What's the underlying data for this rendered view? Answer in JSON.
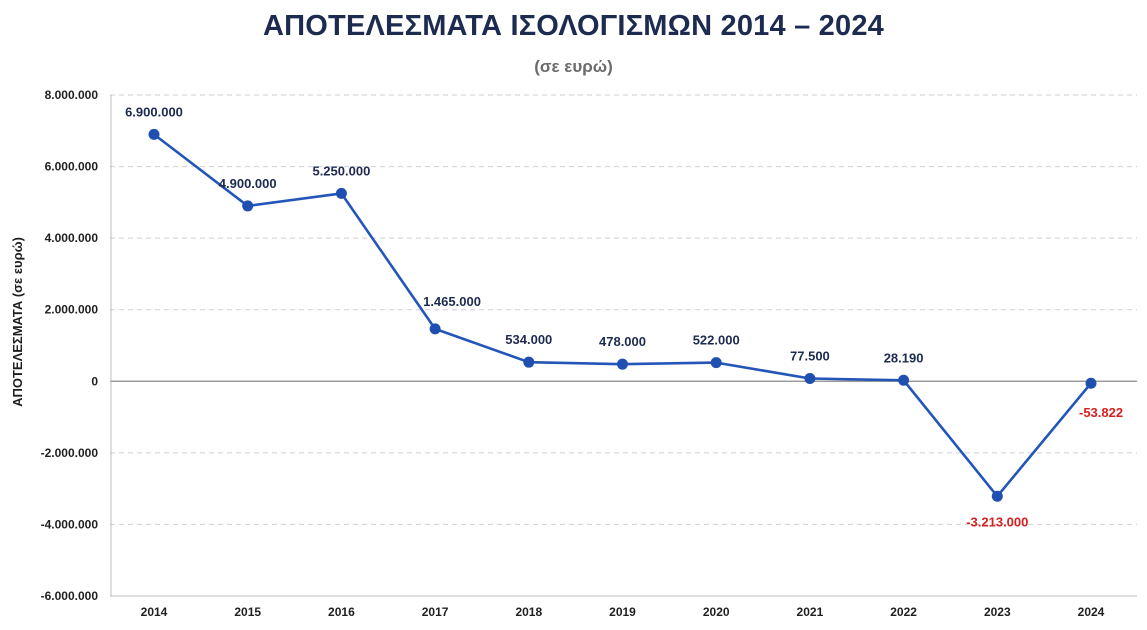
{
  "chart_data": {
    "type": "line",
    "title": "ΑΠΟΤΕΛΕΣΜΑΤΑ ΙΣΟΛΟΓΙΣΜΩΝ 2014 – 2024",
    "subtitle": "(σε ευρώ)",
    "ylabel": "ΑΠΟΤΕΛΕΣΜΑΤΑ  (σε ευρώ)",
    "xlabel": "",
    "categories": [
      "2014",
      "2015",
      "2016",
      "2017",
      "2018",
      "2019",
      "2020",
      "2021",
      "2022",
      "2023",
      "2024"
    ],
    "values": [
      6900000,
      4900000,
      5250000,
      1465000,
      534000,
      478000,
      522000,
      77500,
      28190,
      -3213000,
      -53822
    ],
    "data_labels": [
      "6.900.000",
      "4.900.000",
      "5.250.000",
      "1.465.000",
      "534.000",
      "478.000",
      "522.000",
      "77.500",
      "28.190",
      "-3.213.000",
      "-53.822"
    ],
    "ylim": [
      -6000000,
      8000000
    ],
    "yticks": [
      8000000,
      6000000,
      4000000,
      2000000,
      0,
      -2000000,
      -4000000,
      -6000000
    ],
    "ytick_labels": [
      "8.000.000",
      "6.000.000",
      "4.000.000",
      "2.000.000",
      "0",
      "-2.000.000",
      "-4.000.000",
      "-6.000.000"
    ],
    "grid": true,
    "legend": "none"
  },
  "colors": {
    "line": "#2356b8",
    "marker": "#1f4fb0",
    "positive_label": "#1c2b4f",
    "negative_label": "#d62020",
    "positive_tick": "#1f1f1f",
    "negative_tick": "#d62020",
    "grid": "#cfcfcf",
    "zero_line": "#8a8a8a"
  }
}
